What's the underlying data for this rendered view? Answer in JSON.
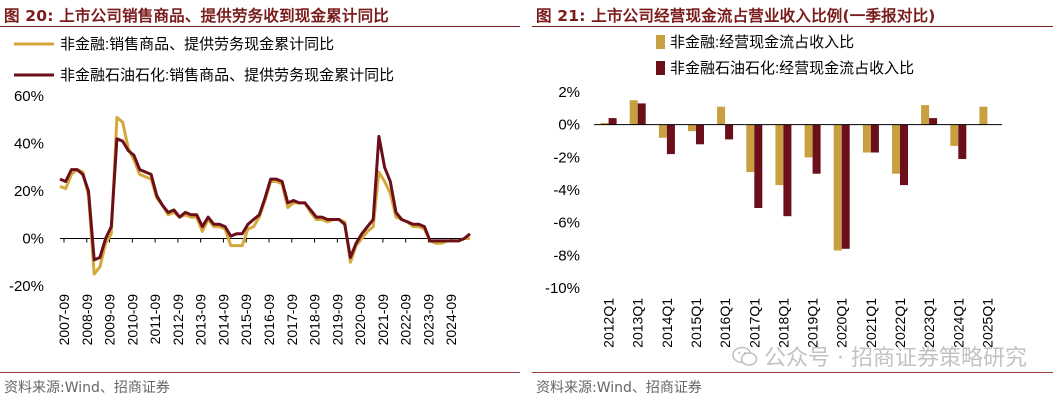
{
  "left": {
    "figure_label": "图 20:",
    "title": "上市公司销售商品、提供劳务收到现金累计同比",
    "source": "资料来源:Wind、招商证券",
    "colors": {
      "gold": "#d4a83a",
      "maroon": "#6b0f1a"
    },
    "chart_data": {
      "type": "line",
      "title": "上市公司销售商品、提供劳务收到现金累计同比",
      "ylim": [
        -20,
        60
      ],
      "yticks": [
        "60%",
        "40%",
        "20%",
        "0%",
        "-20%"
      ],
      "xticks": [
        "2007-09",
        "2008-09",
        "2009-09",
        "2010-09",
        "2011-09",
        "2012-09",
        "2013-09",
        "2014-09",
        "2015-09",
        "2016-09",
        "2017-09",
        "2018-09",
        "2019-09",
        "2020-09",
        "2021-09",
        "2022-09",
        "2023-09",
        "2024-09"
      ],
      "x_start": 2007.75,
      "x_end": 2025.0,
      "series": [
        {
          "name": "非金融:销售商品、提供劳务现金累计同比",
          "color": "#d4a83a",
          "x": [
            2007.0,
            2007.25,
            2007.5,
            2007.75,
            2008.0,
            2008.25,
            2008.5,
            2008.75,
            2009.0,
            2009.25,
            2009.5,
            2009.75,
            2010.0,
            2010.25,
            2010.5,
            2010.75,
            2011.0,
            2011.25,
            2011.5,
            2011.75,
            2012.0,
            2012.25,
            2012.5,
            2012.75,
            2013.0,
            2013.25,
            2013.5,
            2013.75,
            2014.0,
            2014.25,
            2014.5,
            2014.75,
            2015.0,
            2015.25,
            2015.5,
            2015.75,
            2016.0,
            2016.25,
            2016.5,
            2016.75,
            2017.0,
            2017.25,
            2017.5,
            2017.75,
            2018.0,
            2018.25,
            2018.5,
            2018.75,
            2019.0,
            2019.25,
            2019.5,
            2019.75,
            2020.0,
            2020.25,
            2020.5,
            2020.75,
            2021.0,
            2021.25,
            2021.5,
            2021.75,
            2022.0,
            2022.25,
            2022.5,
            2022.75,
            2023.0,
            2023.25,
            2023.5,
            2023.75,
            2024.0,
            2024.25,
            2024.5,
            2024.75,
            2025.0
          ],
          "y": [
            22,
            21,
            27,
            29,
            28,
            18,
            -15,
            -12,
            -2,
            2,
            51,
            49,
            38,
            33,
            27,
            26,
            25,
            17,
            14,
            10,
            11,
            9,
            10,
            9,
            9,
            3,
            8,
            5,
            5,
            4,
            -3,
            -3,
            -3,
            4,
            5,
            9,
            16,
            24,
            24,
            23,
            13,
            15,
            15,
            15,
            11,
            8,
            8,
            7,
            8,
            8,
            7,
            -10,
            -3,
            0,
            3,
            5,
            28,
            24,
            19,
            9,
            8,
            7,
            5,
            5,
            4,
            -1,
            -2,
            -2,
            -1,
            -1,
            -1,
            0,
            0
          ]
        },
        {
          "name": "非金融石油石化:销售商品、提供劳务现金累计同比",
          "color": "#6b0f1a",
          "x": [
            2007.0,
            2007.25,
            2007.5,
            2007.75,
            2008.0,
            2008.25,
            2008.5,
            2008.75,
            2009.0,
            2009.25,
            2009.5,
            2009.75,
            2010.0,
            2010.25,
            2010.5,
            2010.75,
            2011.0,
            2011.25,
            2011.5,
            2011.75,
            2012.0,
            2012.25,
            2012.5,
            2012.75,
            2013.0,
            2013.25,
            2013.5,
            2013.75,
            2014.0,
            2014.25,
            2014.5,
            2014.75,
            2015.0,
            2015.25,
            2015.5,
            2015.75,
            2016.0,
            2016.25,
            2016.5,
            2016.75,
            2017.0,
            2017.25,
            2017.5,
            2017.75,
            2018.0,
            2018.25,
            2018.5,
            2018.75,
            2019.0,
            2019.25,
            2019.5,
            2019.75,
            2020.0,
            2020.25,
            2020.5,
            2020.75,
            2021.0,
            2021.25,
            2021.5,
            2021.75,
            2022.0,
            2022.25,
            2022.5,
            2022.75,
            2023.0,
            2023.25,
            2023.5,
            2023.75,
            2024.0,
            2024.25,
            2024.5,
            2024.75,
            2025.0
          ],
          "y": [
            25,
            24,
            29,
            29,
            27,
            20,
            -9,
            -8,
            0,
            5,
            42,
            41,
            37,
            35,
            29,
            28,
            27,
            18,
            14,
            11,
            12,
            9,
            11,
            10,
            10,
            5,
            9,
            6,
            6,
            5,
            1,
            2,
            2,
            6,
            8,
            10,
            17,
            25,
            25,
            24,
            15,
            16,
            15,
            15,
            12,
            9,
            9,
            8,
            8,
            8,
            6,
            -8,
            -2,
            2,
            5,
            8,
            43,
            30,
            24,
            11,
            8,
            7,
            6,
            6,
            5,
            -1,
            -1,
            -1,
            -1,
            -1,
            -1,
            0,
            2
          ]
        }
      ]
    }
  },
  "right": {
    "figure_label": "图 21:",
    "title": "上市公司经营现金流占营业收入比例(一季报对比)",
    "source": "资料来源:Wind、招商证券",
    "watermark": "公众号 · 招商证券策略研究",
    "colors": {
      "gold": "#c9a041",
      "maroon": "#6b0f1a"
    },
    "chart_data": {
      "type": "bar",
      "title": "上市公司经营现金流占营业收入比例(一季报对比)",
      "ylim": [
        -10,
        2
      ],
      "yticks": [
        "2%",
        "0%",
        "-2%",
        "-4%",
        "-6%",
        "-8%",
        "-10%"
      ],
      "categories": [
        "2012Q1",
        "2013Q1",
        "2014Q1",
        "2015Q1",
        "2016Q1",
        "2017Q1",
        "2018Q1",
        "2019Q1",
        "2020Q1",
        "2021Q1",
        "2022Q1",
        "2023Q1",
        "2024Q1",
        "2025Q1"
      ],
      "series": [
        {
          "name": "非金融:经营现金流占收入比",
          "color": "#c9a041",
          "values": [
            0.1,
            1.5,
            -0.8,
            -0.4,
            1.1,
            -2.9,
            -3.7,
            -2.0,
            -7.7,
            -1.7,
            -3.0,
            1.2,
            -1.3,
            1.1
          ]
        },
        {
          "name": "非金融石油石化:经营现金流占收入比",
          "color": "#6b0f1a",
          "values": [
            0.4,
            1.3,
            -1.8,
            -1.2,
            -0.9,
            -5.1,
            -5.6,
            -3.0,
            -7.6,
            -1.7,
            -3.7,
            0.4,
            -2.1,
            null
          ]
        }
      ]
    }
  }
}
